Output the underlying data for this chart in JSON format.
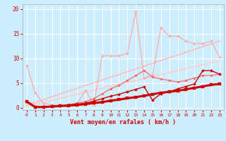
{
  "bg_color": "#cceeff",
  "grid_color": "#ffffff",
  "xlabel": "Vent moyen/en rafales ( km/h )",
  "xlabel_color": "#cc0000",
  "tick_color": "#cc0000",
  "ylim": [
    -0.5,
    21
  ],
  "xlim": [
    -0.5,
    23.5
  ],
  "yticks": [
    0,
    5,
    10,
    15,
    20
  ],
  "xticks": [
    0,
    1,
    2,
    3,
    4,
    5,
    6,
    7,
    8,
    9,
    10,
    11,
    12,
    13,
    14,
    15,
    16,
    17,
    18,
    19,
    20,
    21,
    22,
    23
  ],
  "lines": [
    {
      "x": [
        0,
        1,
        2,
        3,
        4,
        5,
        6,
        7,
        8,
        9,
        10,
        11,
        12,
        13,
        14,
        15,
        16,
        17,
        18,
        19,
        20,
        21,
        22,
        23
      ],
      "y": [
        1.2,
        0.1,
        0.1,
        0.2,
        0.3,
        0.4,
        0.5,
        0.7,
        0.9,
        1.1,
        1.4,
        1.6,
        1.9,
        2.1,
        2.4,
        2.7,
        3.0,
        3.2,
        3.4,
        3.7,
        4.0,
        4.3,
        4.6,
        4.8
      ],
      "color": "#cc0000",
      "lw": 2.2,
      "marker": "s",
      "ms": 2.5,
      "zorder": 6
    },
    {
      "x": [
        0,
        1,
        2,
        3,
        4,
        5,
        6,
        7,
        8,
        9,
        10,
        11,
        12,
        13,
        14,
        15,
        16,
        17,
        18,
        19,
        20,
        21,
        22,
        23
      ],
      "y": [
        1.2,
        0.1,
        0.1,
        0.2,
        0.3,
        0.5,
        0.7,
        0.9,
        1.3,
        1.8,
        2.3,
        2.7,
        3.2,
        3.7,
        4.2,
        1.5,
        2.8,
        3.2,
        3.8,
        4.3,
        4.8,
        7.5,
        7.5,
        6.8
      ],
      "color": "#cc0000",
      "lw": 1.0,
      "marker": "D",
      "ms": 2.0,
      "zorder": 5
    },
    {
      "x": [
        0,
        23
      ],
      "y": [
        0.5,
        13.5
      ],
      "color": "#ffbbbb",
      "lw": 1.2,
      "marker": null,
      "ms": 0,
      "zorder": 2
    },
    {
      "x": [
        0,
        23
      ],
      "y": [
        0.3,
        9.5
      ],
      "color": "#ffcccc",
      "lw": 1.2,
      "marker": null,
      "ms": 0,
      "zorder": 2
    },
    {
      "x": [
        0,
        1,
        2,
        3,
        4,
        5,
        6,
        7,
        8,
        9,
        10,
        11,
        12,
        13,
        14,
        15,
        16,
        17,
        18,
        19,
        20,
        21,
        22,
        23
      ],
      "y": [
        8.5,
        3.0,
        0.8,
        0.5,
        0.5,
        0.5,
        0.8,
        3.5,
        0.5,
        10.5,
        10.5,
        10.5,
        11.0,
        19.5,
        6.0,
        6.5,
        16.2,
        14.5,
        14.5,
        13.5,
        13.0,
        13.0,
        13.5,
        10.2
      ],
      "color": "#ffaaaa",
      "lw": 0.9,
      "marker": "D",
      "ms": 1.8,
      "zorder": 3
    },
    {
      "x": [
        0,
        1,
        2,
        3,
        4,
        5,
        6,
        7,
        8,
        9,
        10,
        11,
        12,
        13,
        14,
        15,
        16,
        17,
        18,
        19,
        20,
        21,
        22,
        23
      ],
      "y": [
        1.2,
        0.1,
        0.1,
        0.3,
        0.4,
        0.6,
        0.9,
        1.2,
        1.8,
        2.8,
        3.8,
        4.5,
        5.5,
        6.5,
        7.5,
        6.2,
        5.8,
        5.5,
        5.2,
        5.5,
        6.0,
        6.5,
        6.5,
        6.8
      ],
      "color": "#ff6666",
      "lw": 0.9,
      "marker": "D",
      "ms": 1.8,
      "zorder": 4
    }
  ]
}
